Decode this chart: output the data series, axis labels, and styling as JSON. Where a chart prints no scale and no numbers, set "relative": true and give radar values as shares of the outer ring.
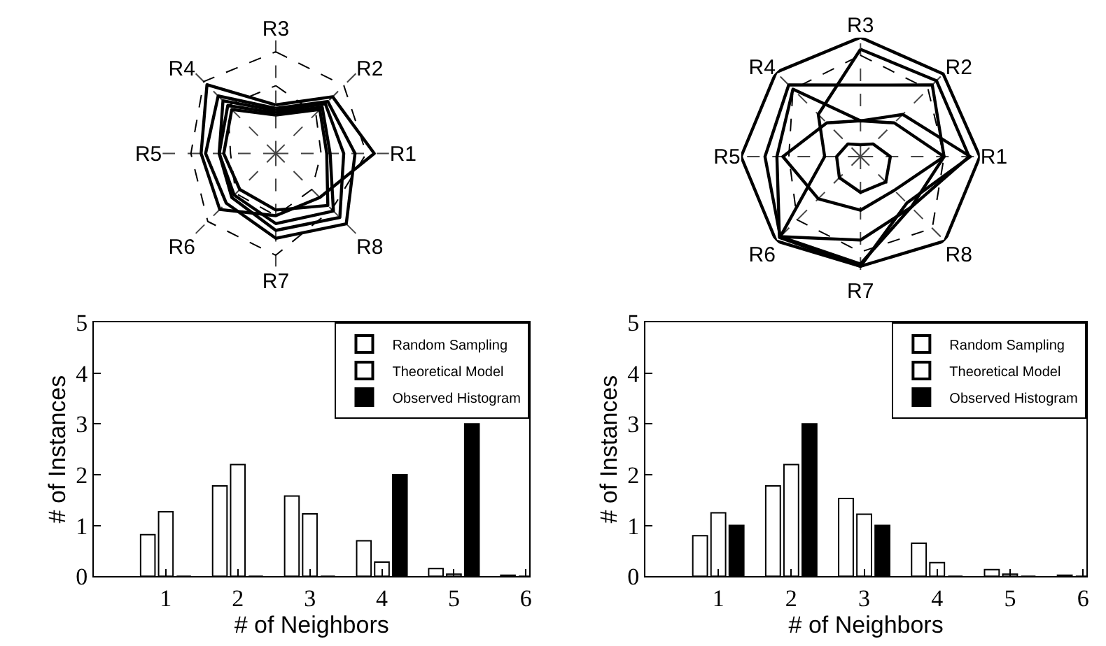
{
  "chart_data": [
    {
      "type": "radar",
      "relative": true,
      "grid": true,
      "categories": [
        "R3",
        "R2",
        "R1",
        "R8",
        "R7",
        "R6",
        "R5",
        "R4"
      ],
      "series": [
        {
          "color": "#000000",
          "line_style": "solid",
          "values": [
            0.43,
            0.71,
            0.87,
            0.55,
            0.55,
            0.7,
            0.66,
            0.86
          ]
        },
        {
          "color": "#000000",
          "line_style": "solid",
          "values": [
            0.4,
            0.65,
            0.7,
            0.88,
            0.75,
            0.62,
            0.62,
            0.72
          ]
        },
        {
          "color": "#000000",
          "line_style": "solid",
          "values": [
            0.38,
            0.62,
            0.6,
            0.8,
            0.68,
            0.55,
            0.5,
            0.66
          ]
        },
        {
          "color": "#000000",
          "line_style": "solid",
          "values": [
            0.36,
            0.58,
            0.48,
            0.72,
            0.62,
            0.52,
            0.5,
            0.6
          ]
        },
        {
          "color": "#000000",
          "line_style": "solid",
          "values": [
            0.34,
            0.55,
            0.45,
            0.65,
            0.5,
            0.45,
            0.46,
            0.55
          ]
        },
        {
          "color": "#000000",
          "line_style": "dashed",
          "values": [
            0.9,
            0.85,
            0.8,
            0.7,
            0.9,
            0.85,
            0.75,
            0.9
          ]
        },
        {
          "color": "#000000",
          "line_style": "dashed",
          "values": [
            0.6,
            0.5,
            0.4,
            0.45,
            0.55,
            0.5,
            0.4,
            0.6
          ]
        }
      ]
    },
    {
      "type": "radar",
      "relative": true,
      "grid": true,
      "categories": [
        "R3",
        "R2",
        "R1",
        "R8",
        "R7",
        "R6",
        "R5",
        "R4"
      ],
      "series": [
        {
          "color": "#000000",
          "line_style": "solid",
          "values": [
            1.0,
            0.98,
            1.0,
            1.0,
            0.92,
            1.0,
            1.0,
            1.0
          ]
        },
        {
          "color": "#000000",
          "line_style": "solid",
          "values": [
            0.9,
            0.9,
            0.91,
            0.6,
            0.9,
            0.95,
            0.3,
            0.5
          ]
        },
        {
          "color": "#000000",
          "line_style": "solid",
          "values": [
            0.6,
            0.85,
            0.7,
            0.6,
            0.7,
            0.95,
            0.8,
            0.85
          ]
        },
        {
          "color": "#000000",
          "line_style": "solid",
          "values": [
            0.3,
            0.5,
            0.92,
            0.55,
            0.92,
            0.96,
            0.7,
            0.8
          ]
        },
        {
          "color": "#000000",
          "line_style": "solid",
          "values": [
            0.1,
            0.15,
            0.25,
            0.3,
            0.3,
            0.25,
            0.2,
            0.15
          ]
        },
        {
          "color": "#000000",
          "line_style": "solid",
          "values": [
            0.3,
            0.4,
            0.7,
            0.4,
            0.45,
            0.5,
            0.65,
            0.4
          ]
        },
        {
          "color": "#000000",
          "line_style": "dashed",
          "values": [
            0.85,
            0.8,
            0.7,
            0.85,
            0.8,
            0.75,
            0.6,
            0.8
          ]
        }
      ]
    },
    {
      "type": "bar",
      "xlabel": "# of Neighbors",
      "ylabel": "# of Instances",
      "x": [
        1,
        2,
        3,
        4,
        5,
        6
      ],
      "xlim": [
        0,
        6.05
      ],
      "xticks": [
        1,
        2,
        3,
        4,
        5,
        6
      ],
      "ylim": [
        0,
        5
      ],
      "yticks": [
        0,
        1,
        2,
        3,
        4,
        5
      ],
      "legend": "top right",
      "series": [
        {
          "name": "Random Sampling",
          "color": "#ffffff",
          "values": [
            0.82,
            1.78,
            1.58,
            0.7,
            0.15,
            0.02
          ]
        },
        {
          "name": "Theoretical Model",
          "color": "#ffffff",
          "values": [
            1.27,
            2.2,
            1.23,
            0.28,
            0.04,
            0.0
          ]
        },
        {
          "name": "Observed Histogram",
          "color": "#000000",
          "values": [
            0,
            0,
            0,
            2,
            3,
            0
          ]
        }
      ]
    },
    {
      "type": "bar",
      "xlabel": "# of Neighbors",
      "ylabel": "# of Instances",
      "x": [
        1,
        2,
        3,
        4,
        5,
        6
      ],
      "xlim": [
        0,
        6.05
      ],
      "xticks": [
        1,
        2,
        3,
        4,
        5,
        6
      ],
      "ylim": [
        0,
        5
      ],
      "yticks": [
        0,
        1,
        2,
        3,
        4,
        5
      ],
      "legend": "top right",
      "series": [
        {
          "name": "Random Sampling",
          "color": "#ffffff",
          "values": [
            0.8,
            1.78,
            1.53,
            0.65,
            0.13,
            0.02
          ]
        },
        {
          "name": "Theoretical Model",
          "color": "#ffffff",
          "values": [
            1.25,
            2.2,
            1.22,
            0.27,
            0.04,
            0.0
          ]
        },
        {
          "name": "Observed Histogram",
          "color": "#000000",
          "values": [
            1,
            3,
            1,
            0,
            0,
            0
          ]
        }
      ]
    }
  ]
}
